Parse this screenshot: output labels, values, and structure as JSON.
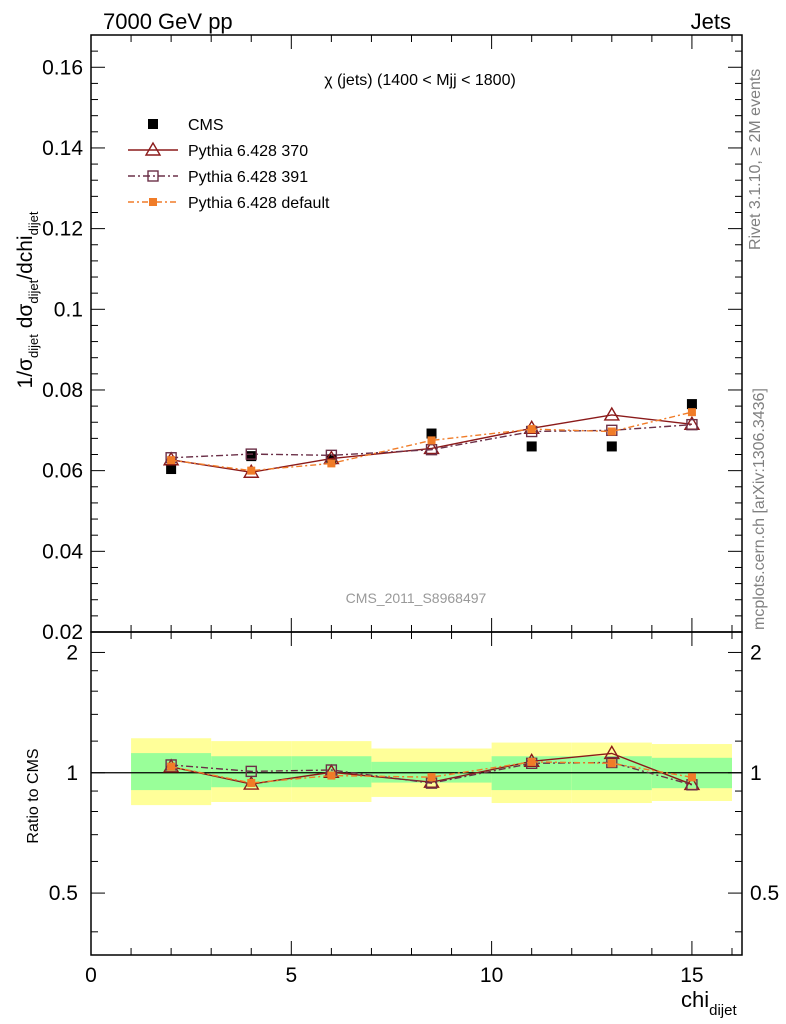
{
  "header": {
    "left": "7000 GeV pp",
    "right": "Jets"
  },
  "side_text": {
    "rivet": "Rivet 3.1.10, ≥ 2M events",
    "mcplots": "mcplots.cern.ch [arXiv:1306.3436]"
  },
  "chart_data": [
    {
      "type": "scatter",
      "title": "χ (jets) (1400 < Mjj < 1800)",
      "watermark": "CMS_2011_S8968497",
      "ylabel": "1/σdijet dσdijet/dchidijet",
      "xlim": [
        0,
        16.25
      ],
      "ylim": [
        0.02,
        0.168
      ],
      "yticks": [
        "0.02",
        "0.04",
        "0.06",
        "0.08",
        "0.1",
        "0.12",
        "0.14",
        "0.16"
      ],
      "legend_position": "top-left",
      "series": [
        {
          "name": "CMS",
          "color": "#000000",
          "marker": "filled-square",
          "x": [
            2,
            4,
            6,
            8.5,
            11,
            13,
            15
          ],
          "y": [
            0.0604,
            0.0636,
            0.0628,
            0.0692,
            0.066,
            0.066,
            0.0765
          ]
        },
        {
          "name": "Pythia 6.428 370",
          "color": "#8b1a1a",
          "marker": "open-triangle",
          "x": [
            2,
            4,
            6,
            8.5,
            11,
            13,
            15
          ],
          "y": [
            0.0627,
            0.0596,
            0.063,
            0.0655,
            0.0705,
            0.0738,
            0.0715
          ]
        },
        {
          "name": "Pythia 6.428 391",
          "color": "#6b3048",
          "marker": "open-square",
          "x": [
            2,
            4,
            6,
            8.5,
            11,
            13,
            15
          ],
          "y": [
            0.0632,
            0.0641,
            0.0638,
            0.0652,
            0.0697,
            0.07,
            0.0714
          ]
        },
        {
          "name": "Pythia 6.428 default",
          "color": "#f07c28",
          "marker": "small-filled-square",
          "x": [
            2,
            4,
            6,
            8.5,
            11,
            13,
            15
          ],
          "y": [
            0.0626,
            0.06,
            0.0618,
            0.0675,
            0.0703,
            0.0697,
            0.0745
          ]
        }
      ]
    },
    {
      "type": "line",
      "xlabel": "chidijet",
      "ylabel": "Ratio to CMS",
      "xlim": [
        0,
        16.25
      ],
      "ylim": [
        0.35,
        2.25
      ],
      "log_y": true,
      "xticks": [
        "0",
        "5",
        "10",
        "15"
      ],
      "yticks": [
        "0.5",
        "1",
        "2"
      ],
      "bands": {
        "x_edges": [
          1,
          3,
          5,
          7,
          10,
          12,
          14,
          16
        ],
        "inner": [
          [
            0.905,
            1.12
          ],
          [
            0.92,
            1.1
          ],
          [
            0.92,
            1.1
          ],
          [
            0.945,
            1.065
          ],
          [
            0.905,
            1.1
          ],
          [
            0.905,
            1.1
          ],
          [
            0.915,
            1.09
          ]
        ],
        "outer": [
          [
            0.83,
            1.22
          ],
          [
            0.845,
            1.2
          ],
          [
            0.845,
            1.2
          ],
          [
            0.87,
            1.15
          ],
          [
            0.84,
            1.19
          ],
          [
            0.84,
            1.19
          ],
          [
            0.85,
            1.18
          ]
        ],
        "inner_color": "#99ff99",
        "outer_color": "#ffff99"
      },
      "series": [
        {
          "name": "Pythia 6.428 370",
          "color": "#8b1a1a",
          "marker": "open-triangle",
          "x": [
            2,
            4,
            6,
            8.5,
            11,
            13,
            15
          ],
          "y": [
            1.035,
            0.937,
            1.003,
            0.947,
            1.068,
            1.118,
            0.935
          ]
        },
        {
          "name": "Pythia 6.428 391",
          "color": "#6b3048",
          "marker": "open-square",
          "x": [
            2,
            4,
            6,
            8.5,
            11,
            13,
            15
          ],
          "y": [
            1.046,
            1.008,
            1.016,
            0.942,
            1.056,
            1.061,
            0.933
          ]
        },
        {
          "name": "Pythia 6.428 default",
          "color": "#f07c28",
          "marker": "small-filled-square",
          "x": [
            2,
            4,
            6,
            8.5,
            11,
            13,
            15
          ],
          "y": [
            1.036,
            0.943,
            0.984,
            0.975,
            1.065,
            1.056,
            0.974
          ]
        }
      ]
    }
  ]
}
